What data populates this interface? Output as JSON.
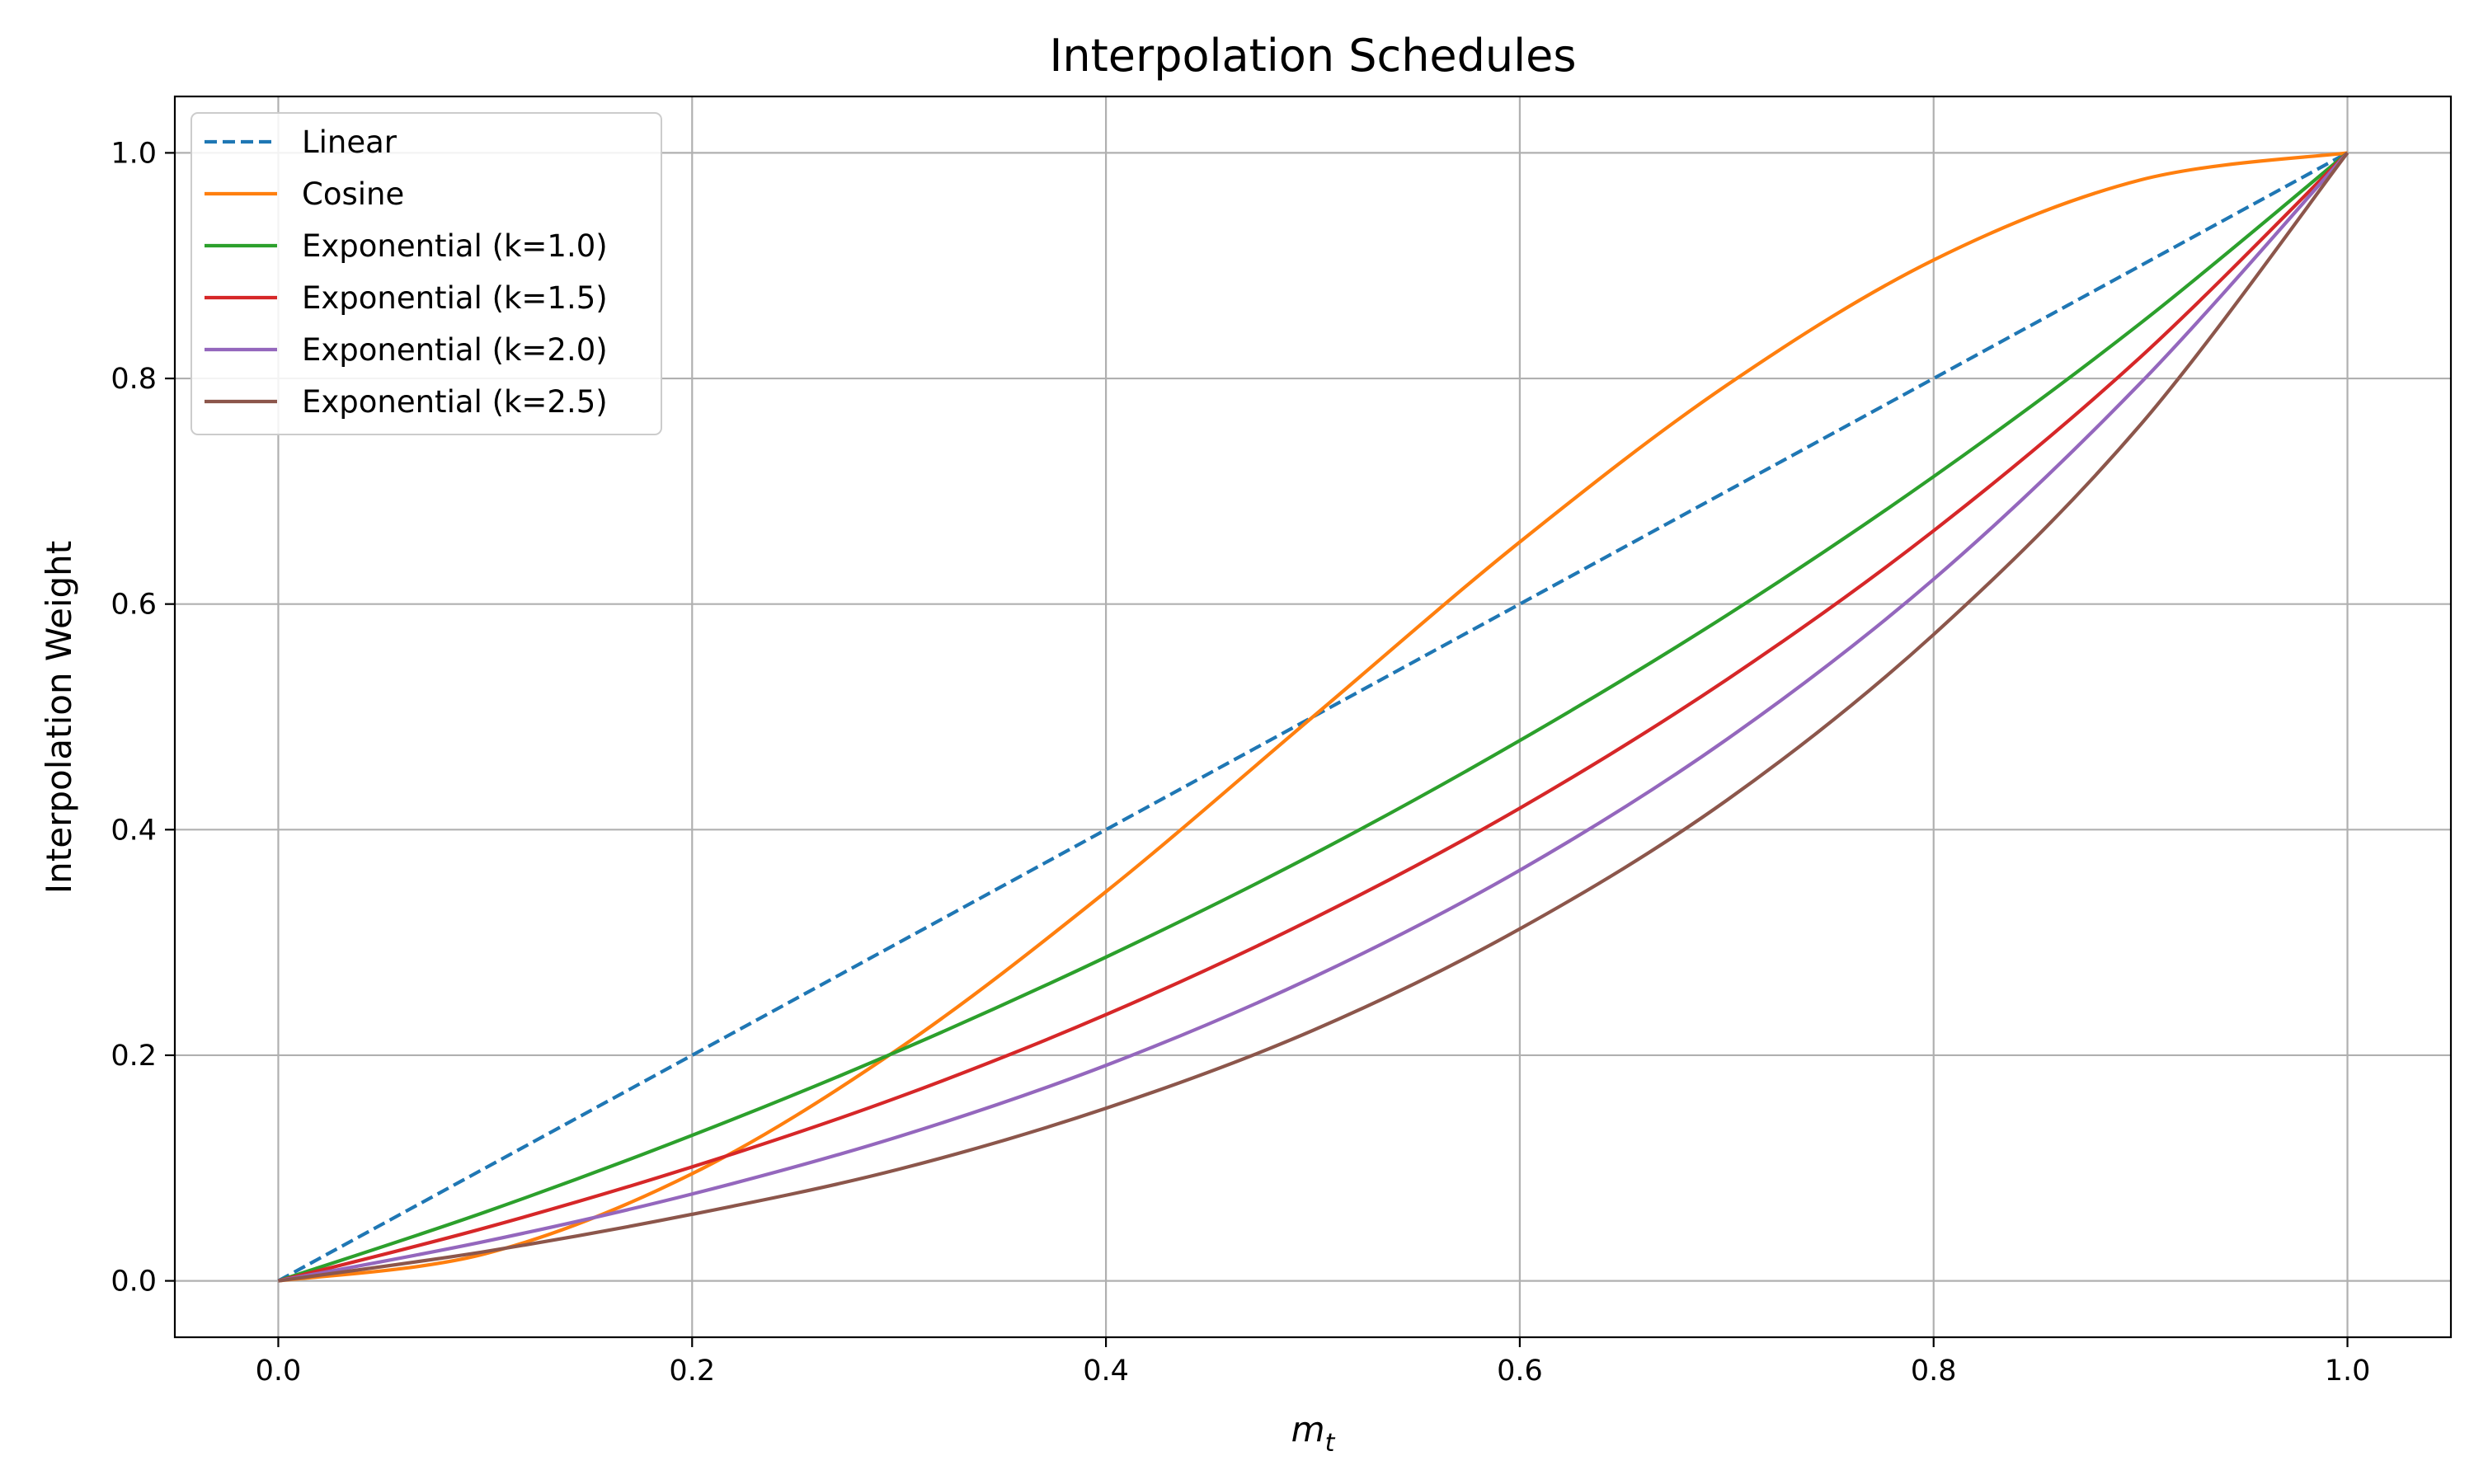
{
  "chart_data": {
    "type": "line",
    "title": "Interpolation Schedules",
    "xlabel_main": "m",
    "xlabel_sub": "t",
    "ylabel": "Interpolation Weight",
    "xlim": [
      -0.05,
      1.05
    ],
    "ylim": [
      -0.05,
      1.05
    ],
    "xticks": [
      0.0,
      0.2,
      0.4,
      0.6,
      0.8,
      1.0
    ],
    "yticks": [
      0.0,
      0.2,
      0.4,
      0.6,
      0.8,
      1.0
    ],
    "xtick_labels": [
      "0.0",
      "0.2",
      "0.4",
      "0.6",
      "0.8",
      "1.0"
    ],
    "ytick_labels": [
      "0.0",
      "0.2",
      "0.4",
      "0.6",
      "0.8",
      "1.0"
    ],
    "grid": true,
    "legend_position": "top-left",
    "x": [
      0.0,
      0.1,
      0.2,
      0.3,
      0.4,
      0.5,
      0.6,
      0.7,
      0.8,
      0.9,
      1.0
    ],
    "series": [
      {
        "name": "Linear",
        "color": "#1f77b4",
        "style": "dashed",
        "values": [
          0.0,
          0.1,
          0.2,
          0.3,
          0.4,
          0.5,
          0.6,
          0.7,
          0.8,
          0.9,
          1.0
        ]
      },
      {
        "name": "Cosine",
        "color": "#ff7f0e",
        "style": "solid",
        "values": [
          0.0,
          0.024,
          0.095,
          0.206,
          0.345,
          0.5,
          0.655,
          0.794,
          0.905,
          0.976,
          1.0
        ]
      },
      {
        "name": "Exponential (k=1.0)",
        "color": "#2ca02c",
        "style": "solid",
        "values": [
          0.0,
          0.061,
          0.129,
          0.204,
          0.287,
          0.378,
          0.479,
          0.59,
          0.713,
          0.849,
          1.0
        ]
      },
      {
        "name": "Exponential (k=1.5)",
        "color": "#d62728",
        "style": "solid",
        "values": [
          0.0,
          0.047,
          0.101,
          0.163,
          0.236,
          0.321,
          0.419,
          0.533,
          0.665,
          0.819,
          1.0
        ]
      },
      {
        "name": "Exponential (k=2.0)",
        "color": "#9467bd",
        "style": "solid",
        "values": [
          0.0,
          0.035,
          0.077,
          0.128,
          0.191,
          0.269,
          0.364,
          0.48,
          0.622,
          0.796,
          1.0
        ]
      },
      {
        "name": "Exponential (k=2.5)",
        "color": "#8c564b",
        "style": "solid",
        "values": [
          0.0,
          0.026,
          0.059,
          0.099,
          0.153,
          0.222,
          0.312,
          0.426,
          0.573,
          0.759,
          1.0
        ]
      }
    ]
  }
}
